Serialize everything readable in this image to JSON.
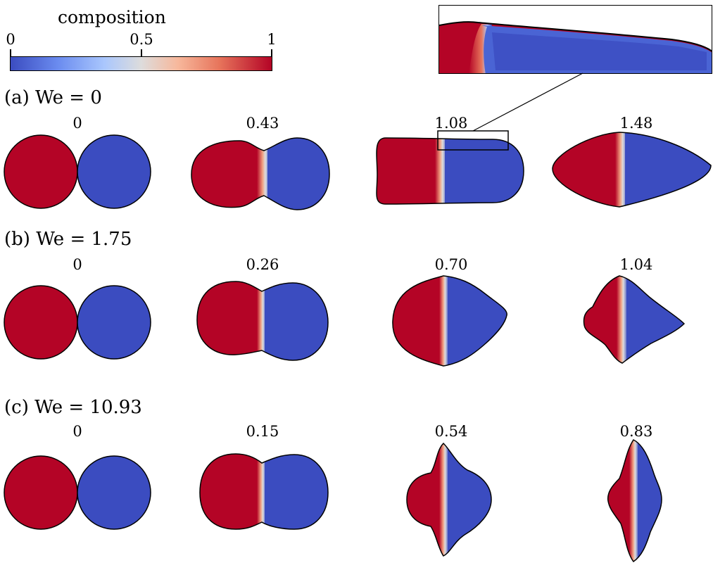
{
  "colorbar": {
    "title": "composition",
    "ticks": [
      "0",
      "0.5",
      "1"
    ],
    "colors": [
      "#3b4cc0",
      "#6a8bef",
      "#aac7fd",
      "#dddcdc",
      "#f7b89c",
      "#e7745b",
      "#b40426"
    ]
  },
  "colors": {
    "red": "#b40426",
    "blue": "#3b4cc0",
    "outline": "#000000"
  },
  "rows": [
    {
      "label": "(a)  We = 0",
      "times": [
        "0",
        "0.43",
        "1.08",
        "1.48"
      ]
    },
    {
      "label": "(b)  We = 1.75",
      "times": [
        "0",
        "0.26",
        "0.70",
        "1.04"
      ]
    },
    {
      "label": "(c)  We = 10.93",
      "times": [
        "0",
        "0.15",
        "0.54",
        "0.83"
      ]
    }
  ],
  "inset": {
    "description_visible": false
  }
}
